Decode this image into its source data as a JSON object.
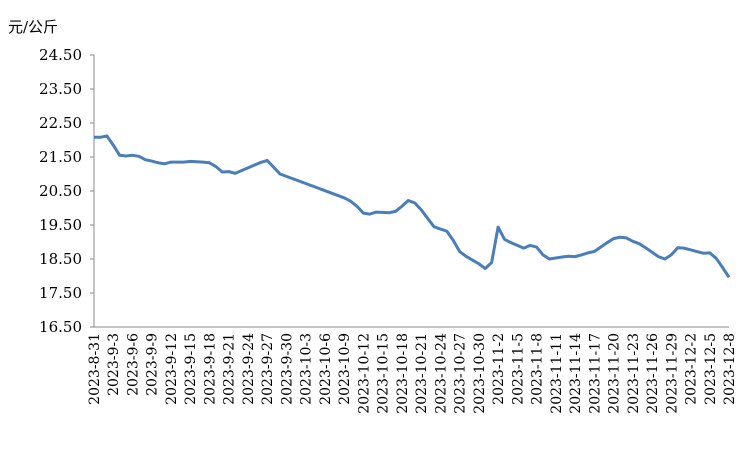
{
  "chart_data": {
    "type": "line",
    "y_label": "元/公斤",
    "categories": [
      "2023-8-31",
      null,
      null,
      "2023-9-3",
      null,
      null,
      "2023-9-6",
      null,
      null,
      "2023-9-9",
      null,
      null,
      "2023-9-12",
      null,
      null,
      "2023-9-15",
      null,
      null,
      "2023-9-18",
      null,
      null,
      "2023-9-21",
      null,
      null,
      "2023-9-24",
      null,
      null,
      "2023-9-27",
      null,
      null,
      "2023-9-30",
      null,
      null,
      "2023-10-3",
      null,
      null,
      "2023-10-6",
      null,
      null,
      "2023-10-9",
      null,
      null,
      "2023-10-12",
      null,
      null,
      "2023-10-15",
      null,
      null,
      "2023-10-18",
      null,
      null,
      "2023-10-21",
      null,
      null,
      "2023-10-24",
      null,
      null,
      "2023-10-27",
      null,
      null,
      "2023-10-30",
      null,
      null,
      "2023-11-2",
      null,
      null,
      "2023-11-5",
      null,
      null,
      "2023-11-8",
      null,
      null,
      "2023-11-11",
      null,
      null,
      "2023-11-14",
      null,
      null,
      "2023-11-17",
      null,
      null,
      "2023-11-20",
      null,
      null,
      "2023-11-23",
      null,
      null,
      "2023-11-26",
      null,
      null,
      "2023-11-29",
      null,
      null,
      "2023-12-2",
      null,
      null,
      "2023-12-5",
      null,
      null,
      "2023-12-8"
    ],
    "values": [
      22.08,
      22.08,
      22.12,
      21.85,
      21.55,
      21.53,
      21.55,
      21.52,
      21.42,
      21.38,
      21.33,
      21.3,
      21.35,
      21.35,
      21.35,
      21.37,
      21.36,
      21.35,
      21.33,
      21.22,
      21.06,
      21.07,
      21.02,
      21.1,
      21.18,
      21.26,
      21.34,
      21.4,
      21.2,
      21.0,
      20.93,
      20.86,
      20.79,
      20.72,
      20.65,
      20.58,
      20.51,
      20.44,
      20.37,
      20.3,
      20.2,
      20.05,
      19.85,
      19.82,
      19.88,
      19.87,
      19.86,
      19.9,
      20.05,
      20.22,
      20.15,
      19.95,
      19.7,
      19.45,
      19.38,
      19.32,
      19.05,
      18.72,
      18.58,
      18.47,
      18.36,
      18.22,
      18.4,
      19.44,
      19.08,
      18.98,
      18.9,
      18.82,
      18.9,
      18.85,
      18.62,
      18.5,
      18.53,
      18.56,
      18.58,
      18.57,
      18.62,
      18.68,
      18.72,
      18.85,
      18.98,
      19.1,
      19.14,
      19.12,
      19.02,
      18.95,
      18.83,
      18.7,
      18.57,
      18.5,
      18.62,
      18.83,
      18.82,
      18.77,
      18.72,
      18.67,
      18.68,
      18.52,
      18.25,
      17.96
    ],
    "color": "#4a7ebb",
    "ylim": [
      16.5,
      24.5
    ],
    "yticks": [
      {
        "value": 16.5,
        "label": "16.50"
      },
      {
        "value": 17.5,
        "label": "17.50"
      },
      {
        "value": 18.5,
        "label": "18.50"
      },
      {
        "value": 19.5,
        "label": "19.50"
      },
      {
        "value": 20.5,
        "label": "20.50"
      },
      {
        "value": 21.5,
        "label": "21.50"
      },
      {
        "value": 22.5,
        "label": "22.50"
      },
      {
        "value": 23.5,
        "label": "23.50"
      },
      {
        "value": 24.5,
        "label": "24.50"
      }
    ],
    "grid": false
  }
}
